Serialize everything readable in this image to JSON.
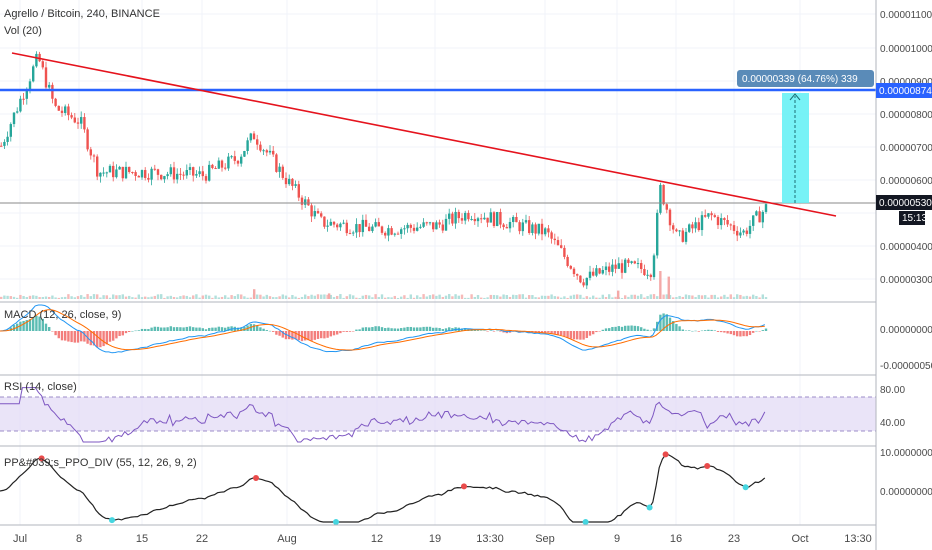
{
  "header": {
    "title": "Agrello / Bitcoin, 240, BINANCE",
    "volume_label": "Vol (20)",
    "macd_label": "MACD (12, 26, close, 9)",
    "rsi_label": "RSI (14, close)",
    "ppo_label": "PP&#039;s_PPO_DIV (55, 12, 26, 9, 2)"
  },
  "colors": {
    "up": "#26a69a",
    "down": "#ef5350",
    "trendline": "#e5131d",
    "hline_blue": "#2962ff",
    "measure_fill": "#5ff0f5",
    "macd_line": "#2196f3",
    "signal_line": "#ff6d00",
    "rsi_line": "#7e57c2",
    "rsi_band": "#e1d8f5",
    "ppo_line": "#222222",
    "ppo_peak": "#e94b4b",
    "ppo_trough": "#46d6e0"
  },
  "chart_data": {
    "type": "candlestick",
    "price_axis": [
      "0.00001100",
      "0.00001000",
      "0.00000900",
      "0.00000800",
      "0.00000700",
      "0.00000600",
      "0.00000400",
      "0.00000300"
    ],
    "price_range": [
      2.5e-06,
      1.14e-05
    ],
    "current_price": "0.00000530",
    "countdown": "15:13",
    "resistance_level": "0.00000874",
    "measure_label": "0.00000339 (64.76%) 339",
    "x_labels": [
      "Jul",
      "8",
      "15",
      "22",
      "Aug",
      "12",
      "19",
      "13:30",
      "Sep",
      "9",
      "16",
      "23",
      "Oct",
      "13:30"
    ],
    "price_path": [
      {
        "date": "Jul 1",
        "price": 8.5e-06
      },
      {
        "date": "Jul 3",
        "price": 9.7e-06
      },
      {
        "date": "Jul 5",
        "price": 8.2e-06
      },
      {
        "date": "Jul 8",
        "price": 7.8e-06
      },
      {
        "date": "Jul 10",
        "price": 6.3e-06
      },
      {
        "date": "Jul 15",
        "price": 6.3e-06
      },
      {
        "date": "Jul 22",
        "price": 6.2e-06
      },
      {
        "date": "Jul 26",
        "price": 6.7e-06
      },
      {
        "date": "Jul 28",
        "price": 7.4e-06
      },
      {
        "date": "Aug 1",
        "price": 6e-06
      },
      {
        "date": "Aug 5",
        "price": 4.8e-06
      },
      {
        "date": "Aug 12",
        "price": 4.6e-06
      },
      {
        "date": "Aug 19",
        "price": 4.7e-06
      },
      {
        "date": "Aug 23",
        "price": 5.1e-06
      },
      {
        "date": "Sep 1",
        "price": 4.5e-06
      },
      {
        "date": "Sep 5",
        "price": 3.1e-06
      },
      {
        "date": "Sep 9",
        "price": 3.5e-06
      },
      {
        "date": "Sep 13",
        "price": 3.4e-06
      },
      {
        "date": "Sep 14",
        "price": 5.8e-06
      },
      {
        "date": "Sep 16",
        "price": 4.3e-06
      },
      {
        "date": "Sep 20",
        "price": 5e-06
      },
      {
        "date": "Sep 24",
        "price": 4.5e-06
      },
      {
        "date": "Sep 27",
        "price": 5.3e-06
      }
    ],
    "volume_spikes": [
      {
        "date": "Jul 28",
        "value": 0.35
      },
      {
        "date": "Aug 6",
        "value": 0.2
      },
      {
        "date": "Sep 9",
        "value": 0.3
      },
      {
        "date": "Sep 14",
        "value": 1.0
      },
      {
        "date": "Sep 15",
        "value": 0.8
      }
    ],
    "macd_axis": [
      "0.00000000",
      "-0.00000050"
    ],
    "rsi_axis": [
      "80.00",
      "40.00"
    ],
    "ppo_axis": [
      "10.00000000",
      "0.00000000"
    ],
    "grid": true
  }
}
